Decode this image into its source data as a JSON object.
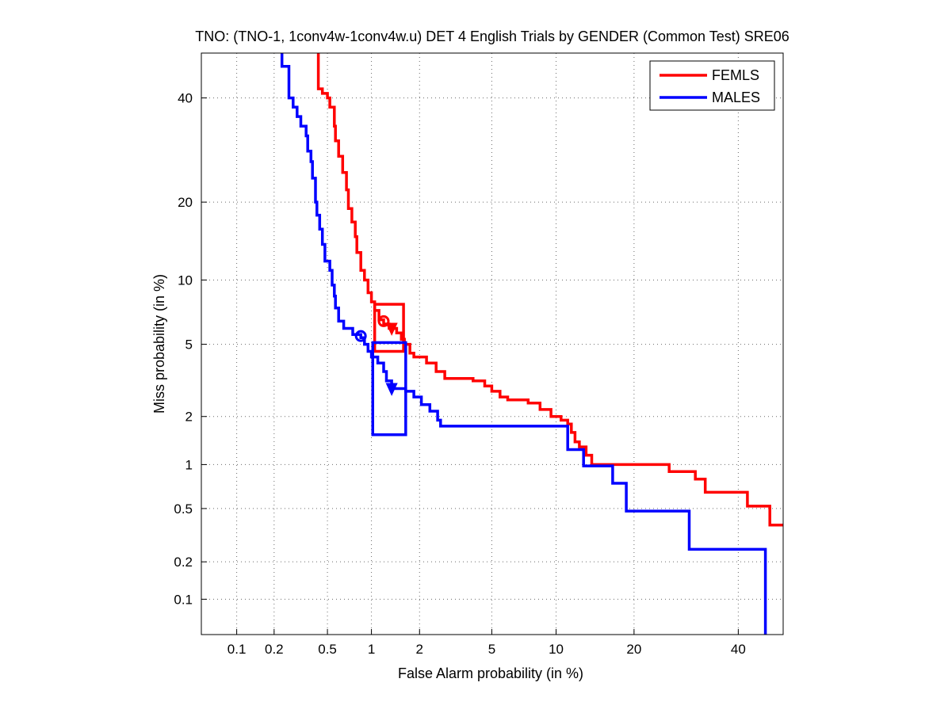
{
  "chart_data": {
    "type": "line",
    "title": "TNO: (TNO-1, 1conv4w-1conv4w.u) DET 4 English Trials by GENDER (Common Test) SRE06",
    "xlabel": "False Alarm probability (in %)",
    "ylabel": "Miss probability (in %)",
    "x_scale": "probit",
    "y_scale": "probit",
    "xlim": [
      0.05,
      50
    ],
    "ylim": [
      0.05,
      50
    ],
    "x_ticks": [
      0.1,
      0.2,
      0.5,
      1,
      2,
      5,
      10,
      20,
      40
    ],
    "x_tick_labels": [
      "0.1",
      "0.2",
      "0.5",
      "1",
      "2",
      "5",
      "10",
      "20",
      "40"
    ],
    "y_ticks": [
      0.1,
      0.2,
      0.5,
      1,
      2,
      5,
      10,
      20,
      40
    ],
    "y_tick_labels": [
      "0.1",
      "0.2",
      "0.5",
      "1",
      "2",
      "5",
      "10",
      "20",
      "40"
    ],
    "grid": true,
    "legend_position": "top-right",
    "series": [
      {
        "name": "FEMLS",
        "color": "#ff0000",
        "points": [
          [
            0.43,
            50
          ],
          [
            0.43,
            42
          ],
          [
            0.46,
            41
          ],
          [
            0.5,
            40
          ],
          [
            0.52,
            38
          ],
          [
            0.56,
            34
          ],
          [
            0.57,
            31
          ],
          [
            0.6,
            28
          ],
          [
            0.64,
            25
          ],
          [
            0.68,
            22
          ],
          [
            0.7,
            19
          ],
          [
            0.74,
            17
          ],
          [
            0.78,
            15
          ],
          [
            0.8,
            13
          ],
          [
            0.85,
            11
          ],
          [
            0.9,
            10
          ],
          [
            0.95,
            8.8
          ],
          [
            1.0,
            8.0
          ],
          [
            1.05,
            7.3
          ],
          [
            1.12,
            6.6
          ],
          [
            1.2,
            6.3
          ],
          [
            1.3,
            6.0
          ],
          [
            1.45,
            5.7
          ],
          [
            1.55,
            5.3
          ],
          [
            1.62,
            5.0
          ],
          [
            1.75,
            4.5
          ],
          [
            1.85,
            4.3
          ],
          [
            2.2,
            4.0
          ],
          [
            2.5,
            3.6
          ],
          [
            2.8,
            3.3
          ],
          [
            4.0,
            3.2
          ],
          [
            4.6,
            3.0
          ],
          [
            5.0,
            2.8
          ],
          [
            5.5,
            2.6
          ],
          [
            6.0,
            2.5
          ],
          [
            7.5,
            2.4
          ],
          [
            8.5,
            2.2
          ],
          [
            9.5,
            2.0
          ],
          [
            10.5,
            1.9
          ],
          [
            11.2,
            1.8
          ],
          [
            11.6,
            1.6
          ],
          [
            12.0,
            1.4
          ],
          [
            12.5,
            1.3
          ],
          [
            13.3,
            1.15
          ],
          [
            14.0,
            1.0
          ],
          [
            25.0,
            1.0
          ],
          [
            26.0,
            0.9
          ],
          [
            31.0,
            0.8
          ],
          [
            33.0,
            0.65
          ],
          [
            41.0,
            0.65
          ],
          [
            42.0,
            0.52
          ],
          [
            46.5,
            0.52
          ],
          [
            47.0,
            0.38
          ],
          [
            50.0,
            0.38
          ]
        ],
        "operating_point": {
          "name": "actual",
          "fa": 1.2,
          "miss": 6.5
        },
        "min_point": {
          "name": "minimum",
          "fa": 1.35,
          "miss": 6.0
        },
        "confidence_box": {
          "fa_low": 1.05,
          "fa_high": 1.6,
          "miss_low": 4.6,
          "miss_high": 7.8
        }
      },
      {
        "name": "MALES",
        "color": "#0000ff",
        "points": [
          [
            0.23,
            50
          ],
          [
            0.23,
            47
          ],
          [
            0.26,
            46
          ],
          [
            0.26,
            40
          ],
          [
            0.28,
            38
          ],
          [
            0.3,
            36
          ],
          [
            0.32,
            34
          ],
          [
            0.35,
            32
          ],
          [
            0.36,
            29
          ],
          [
            0.38,
            27
          ],
          [
            0.39,
            24
          ],
          [
            0.41,
            20
          ],
          [
            0.42,
            18
          ],
          [
            0.44,
            16
          ],
          [
            0.46,
            14
          ],
          [
            0.48,
            12
          ],
          [
            0.52,
            11
          ],
          [
            0.54,
            9.5
          ],
          [
            0.56,
            8.5
          ],
          [
            0.57,
            7.5
          ],
          [
            0.6,
            6.5
          ],
          [
            0.65,
            6.0
          ],
          [
            0.75,
            5.6
          ],
          [
            0.85,
            5.4
          ],
          [
            0.9,
            5.0
          ],
          [
            0.95,
            4.6
          ],
          [
            1.0,
            4.3
          ],
          [
            1.1,
            4.0
          ],
          [
            1.2,
            3.6
          ],
          [
            1.25,
            3.2
          ],
          [
            1.35,
            2.9
          ],
          [
            1.5,
            2.9
          ],
          [
            1.65,
            2.8
          ],
          [
            1.85,
            2.6
          ],
          [
            2.05,
            2.35
          ],
          [
            2.3,
            2.15
          ],
          [
            2.55,
            1.9
          ],
          [
            2.65,
            1.75
          ],
          [
            11.0,
            1.75
          ],
          [
            11.2,
            1.25
          ],
          [
            12.8,
            1.25
          ],
          [
            13.0,
            0.98
          ],
          [
            16.5,
            0.98
          ],
          [
            16.8,
            0.75
          ],
          [
            18.5,
            0.75
          ],
          [
            18.8,
            0.48
          ],
          [
            29.5,
            0.48
          ],
          [
            29.8,
            0.25
          ],
          [
            46.0,
            0.25
          ],
          [
            46.0,
            0.05
          ]
        ],
        "operating_point": {
          "name": "actual",
          "fa": 0.85,
          "miss": 5.5
        },
        "min_point": {
          "name": "minimum",
          "fa": 1.35,
          "miss": 2.9
        },
        "confidence_box": {
          "fa_low": 1.02,
          "fa_high": 1.65,
          "miss_low": 1.55,
          "miss_high": 5.1
        }
      }
    ]
  }
}
